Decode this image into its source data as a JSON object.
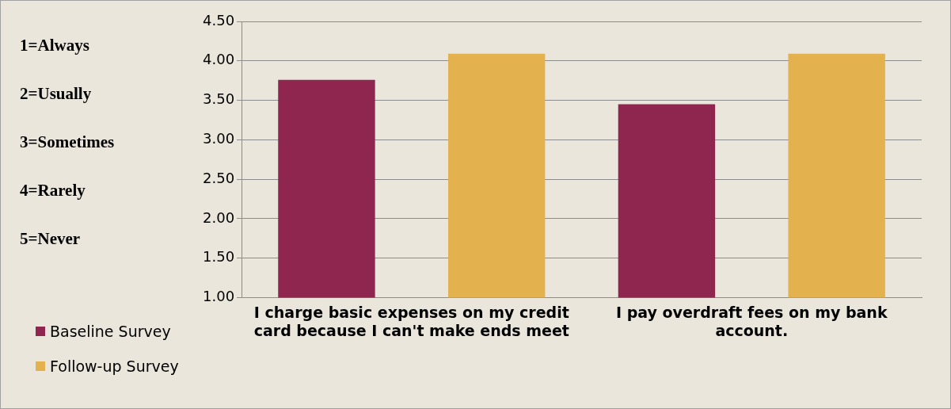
{
  "chart_data": {
    "type": "bar",
    "categories": [
      "I charge basic expenses on my credit card because I can't make ends meet",
      "I pay overdraft fees on my bank account."
    ],
    "series": [
      {
        "name": "Baseline Survey",
        "color": "#8e2650",
        "values": [
          3.76,
          3.45
        ]
      },
      {
        "name": "Follow-up Survey",
        "color": "#e3b24e",
        "values": [
          4.09,
          4.09
        ]
      }
    ],
    "ylim": [
      1,
      4.5
    ],
    "yticks": [
      {
        "value": 1,
        "label": "1.00"
      },
      {
        "value": 1.5,
        "label": "1.50"
      },
      {
        "value": 2,
        "label": "2.00"
      },
      {
        "value": 2.5,
        "label": "2.50"
      },
      {
        "value": 3,
        "label": "3.00"
      },
      {
        "value": 3.5,
        "label": "3.50"
      },
      {
        "value": 4,
        "label": "4.00"
      },
      {
        "value": 4.5,
        "label": "4.50"
      }
    ],
    "grid": "y",
    "legend": "bottom left",
    "annotations": [
      "1=Always",
      "2=Usually",
      "3=Sometimes",
      "4=Rarely",
      "5=Never"
    ]
  }
}
